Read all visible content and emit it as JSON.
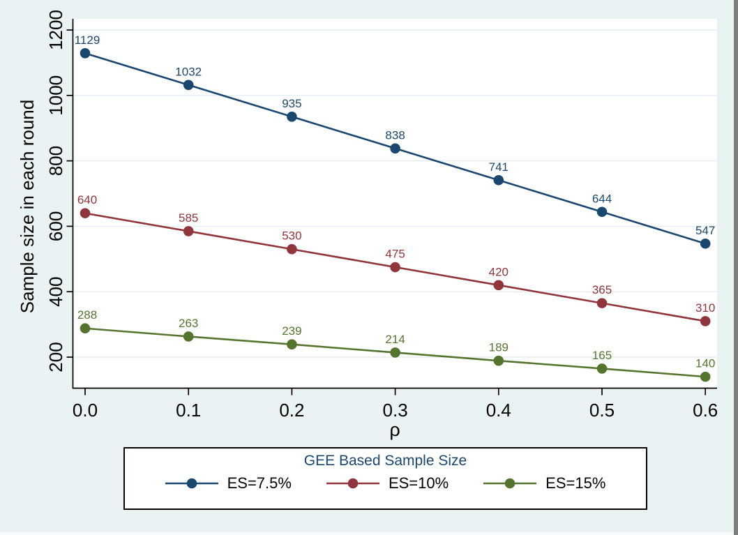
{
  "figure": {
    "background_color": "#eaf2f3",
    "plot_background_color": "#ffffff",
    "gridline_color": "#e4eef1",
    "axis_color": "#000000",
    "tick_label_color": "#000000",
    "right_edge_color": "#7e7e7e",
    "bottom_edge_color": "#f8fbfc"
  },
  "chart_data": {
    "type": "line",
    "title": "GEE Based Sample Size",
    "title_color": "#1a476f",
    "xlabel": "ρ",
    "ylabel": "Sample size in each round",
    "x": [
      0.0,
      0.1,
      0.2,
      0.3,
      0.4,
      0.5,
      0.6
    ],
    "xtick_labels": [
      "0.0",
      "0.1",
      "0.2",
      "0.3",
      "0.4",
      "0.5",
      "0.6"
    ],
    "yticks": [
      200,
      400,
      600,
      800,
      1000,
      1200
    ],
    "ytick_labels": [
      "200",
      "400",
      "600",
      "800",
      "1000",
      "1200"
    ],
    "ylim": [
      105,
      1235
    ],
    "xlim": [
      -0.012,
      0.611
    ],
    "grid": true,
    "data_labels": true,
    "legend_position": "bottom",
    "series": [
      {
        "name": "ES=7.5%",
        "color": "#1a476f",
        "values": [
          1129,
          1032,
          935,
          838,
          741,
          644,
          547
        ]
      },
      {
        "name": "ES=10%",
        "color": "#90353b",
        "values": [
          640,
          585,
          530,
          475,
          420,
          365,
          310
        ]
      },
      {
        "name": "ES=15%",
        "color": "#55752f",
        "values": [
          288,
          263,
          239,
          214,
          189,
          165,
          140
        ]
      }
    ]
  }
}
